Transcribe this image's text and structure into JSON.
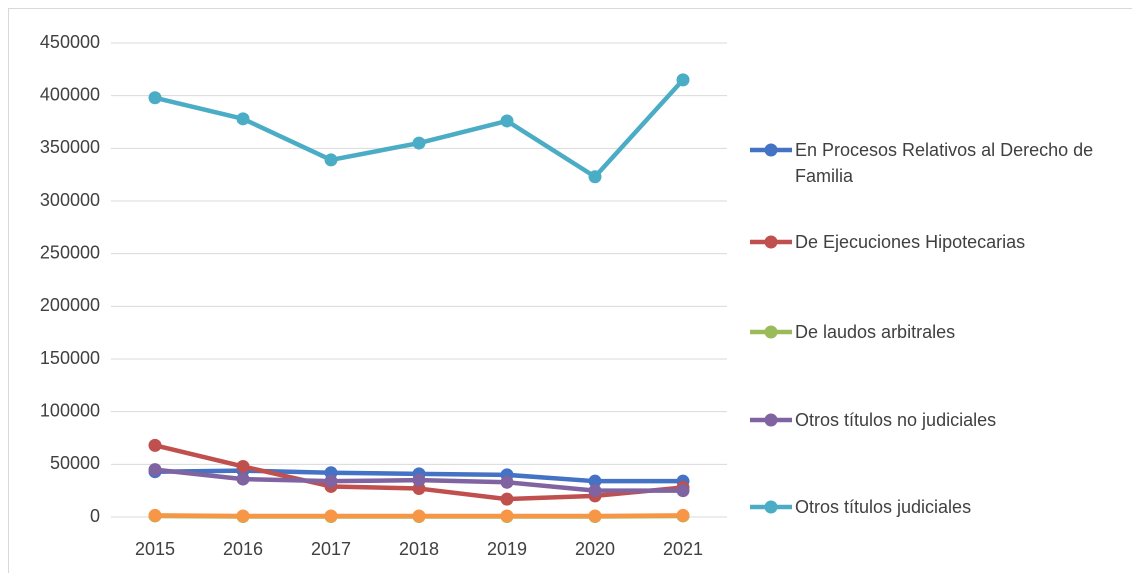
{
  "chart_data": {
    "type": "line",
    "categories": [
      "2015",
      "2016",
      "2017",
      "2018",
      "2019",
      "2020",
      "2021"
    ],
    "series": [
      {
        "name": "En Procesos Relativos al Derecho de Familia",
        "color": "#4472c4",
        "values": [
          43000,
          44000,
          42000,
          41000,
          40000,
          34000,
          34000
        ]
      },
      {
        "name": "De Ejecuciones Hipotecarias",
        "color": "#c0504d",
        "values": [
          68000,
          48000,
          29000,
          27000,
          17000,
          20000,
          28000
        ]
      },
      {
        "name": "De laudos arbitrales",
        "color": "#9bbb59",
        "values": [
          1000,
          500,
          500,
          500,
          500,
          500,
          1000
        ]
      },
      {
        "name": "Otros títulos no judiciales",
        "color": "#8064a2",
        "values": [
          45000,
          36000,
          34000,
          35000,
          33000,
          25000,
          25000
        ]
      },
      {
        "name": "Otros títulos judiciales",
        "color": "#4bacc6",
        "values": [
          398000,
          378000,
          339000,
          355000,
          376000,
          323000,
          415000
        ]
      },
      {
        "color": "#f79646",
        "values": [
          1500,
          1000,
          1000,
          1000,
          1000,
          1000,
          1500
        ]
      }
    ],
    "ylim": [
      0,
      450000
    ],
    "yticks": [
      0,
      50000,
      100000,
      150000,
      200000,
      250000,
      300000,
      350000,
      400000,
      450000
    ],
    "grid": true
  }
}
